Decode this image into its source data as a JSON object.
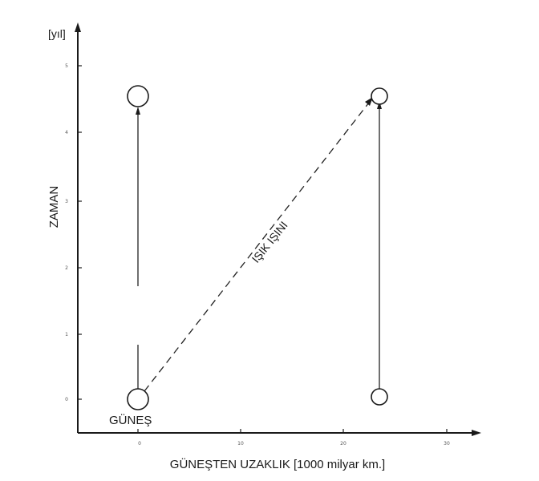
{
  "diagram": {
    "y_unit": "[yıl]",
    "y_axis_label": "ZAMAN",
    "x_axis_label": "GÜNEŞTEN UZAKLIK [1000 milyar km.]",
    "sun_label": "GÜNEŞ",
    "light_ray_label": "IŞIK IŞINI",
    "x_ticks": [
      "0",
      "10",
      "20",
      "30"
    ],
    "y_ticks": [
      "0",
      "1",
      "2",
      "3",
      "4",
      "5"
    ]
  }
}
